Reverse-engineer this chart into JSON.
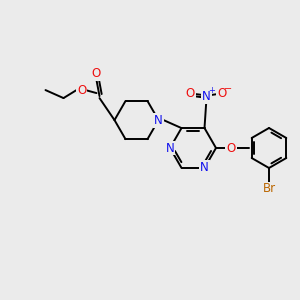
{
  "bg_color": "#ebebeb",
  "atom_colors": {
    "N": "#1010ee",
    "O": "#ee1010",
    "Br": "#bb6600",
    "C": "#000000"
  },
  "bond_color": "#000000",
  "figsize": [
    3.0,
    3.0
  ],
  "dpi": 100,
  "lw": 1.4,
  "fs": 8.5
}
